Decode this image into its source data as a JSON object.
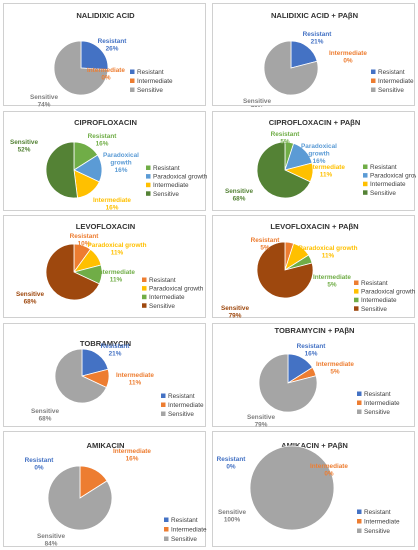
{
  "colors": {
    "resistant": "#4472c4",
    "intermediate": "#ed7d31",
    "sensitive_gray": "#a5a5a5",
    "paradoxical": "#5b9bd5",
    "intermediate_yellow": "#ffc000",
    "sensitive_green": "#548235",
    "resistant_green": "#70ad47",
    "sensitive_brown": "#9e480e"
  },
  "chart_data": [
    {
      "type": "pie",
      "title": "NALIDIXIC ACID",
      "slices": [
        {
          "name": "Resistant",
          "value": 26,
          "label": "26%"
        },
        {
          "name": "Intermediate",
          "value": 0,
          "label": "0%"
        },
        {
          "name": "Sensitive",
          "value": 74,
          "label": "74%"
        }
      ]
    },
    {
      "type": "pie",
      "title": "NALIDIXIC ACID + PAβN",
      "slices": [
        {
          "name": "Resistant",
          "value": 21,
          "label": "21%"
        },
        {
          "name": "Intermediate",
          "value": 0,
          "label": "0%"
        },
        {
          "name": "Sensitive",
          "value": 79,
          "label": "79%"
        }
      ]
    },
    {
      "type": "pie",
      "title": "CIPROFLOXACIN",
      "slices": [
        {
          "name": "Resistant",
          "value": 16,
          "label": "16%"
        },
        {
          "name": "Paradoxical growth",
          "value": 16,
          "label": "16%"
        },
        {
          "name": "Intermediate",
          "value": 16,
          "label": "16%"
        },
        {
          "name": "Sensitive",
          "value": 52,
          "label": "52%"
        }
      ]
    },
    {
      "type": "pie",
      "title": "CIPROFLOXACIN + PAβN",
      "slices": [
        {
          "name": "Resistant",
          "value": 5,
          "label": "5%"
        },
        {
          "name": "Paradoxical growth",
          "value": 16,
          "label": "16%"
        },
        {
          "name": "Intermediate",
          "value": 11,
          "label": "11%"
        },
        {
          "name": "Sensitive",
          "value": 68,
          "label": "68%"
        }
      ]
    },
    {
      "type": "pie",
      "title": "LEVOFLOXACIN",
      "slices": [
        {
          "name": "Resistant",
          "value": 10,
          "label": "10%"
        },
        {
          "name": "Paradoxical growth",
          "value": 11,
          "label": "11%"
        },
        {
          "name": "Intermediate",
          "value": 11,
          "label": "11%"
        },
        {
          "name": "Sensitive",
          "value": 68,
          "label": "68%"
        }
      ]
    },
    {
      "type": "pie",
      "title": "LEVOFLOXACIN + PAβN",
      "slices": [
        {
          "name": "Resistant",
          "value": 5,
          "label": "5%"
        },
        {
          "name": "Paradoxical growth",
          "value": 11,
          "label": "11%"
        },
        {
          "name": "Intermediate",
          "value": 5,
          "label": "5%"
        },
        {
          "name": "Sensitive",
          "value": 79,
          "label": "79%"
        }
      ]
    },
    {
      "type": "pie",
      "title": "TOBRAMYCIN",
      "slices": [
        {
          "name": "Resistant",
          "value": 21,
          "label": "21%"
        },
        {
          "name": "Intermediate",
          "value": 11,
          "label": "11%"
        },
        {
          "name": "Sensitive",
          "value": 68,
          "label": "68%"
        }
      ]
    },
    {
      "type": "pie",
      "title": "TOBRAMYCIN + PAβN",
      "slices": [
        {
          "name": "Resistant",
          "value": 16,
          "label": "16%"
        },
        {
          "name": "Intermediate",
          "value": 5,
          "label": "5%"
        },
        {
          "name": "Sensitive",
          "value": 79,
          "label": "79%"
        }
      ]
    },
    {
      "type": "pie",
      "title": "AMIKACIN",
      "slices": [
        {
          "name": "Resistant",
          "value": 0,
          "label": "0%"
        },
        {
          "name": "Intermediate",
          "value": 16,
          "label": "16%"
        },
        {
          "name": "Sensitive",
          "value": 84,
          "label": "84%"
        }
      ]
    },
    {
      "type": "pie",
      "title": "AMIKACIN + PAβN",
      "slices": [
        {
          "name": "Resistant",
          "value": 0,
          "label": "0%"
        },
        {
          "name": "Intermediate",
          "value": 0,
          "label": "0%"
        },
        {
          "name": "Sensitive",
          "value": 100,
          "label": "100%"
        }
      ]
    }
  ]
}
